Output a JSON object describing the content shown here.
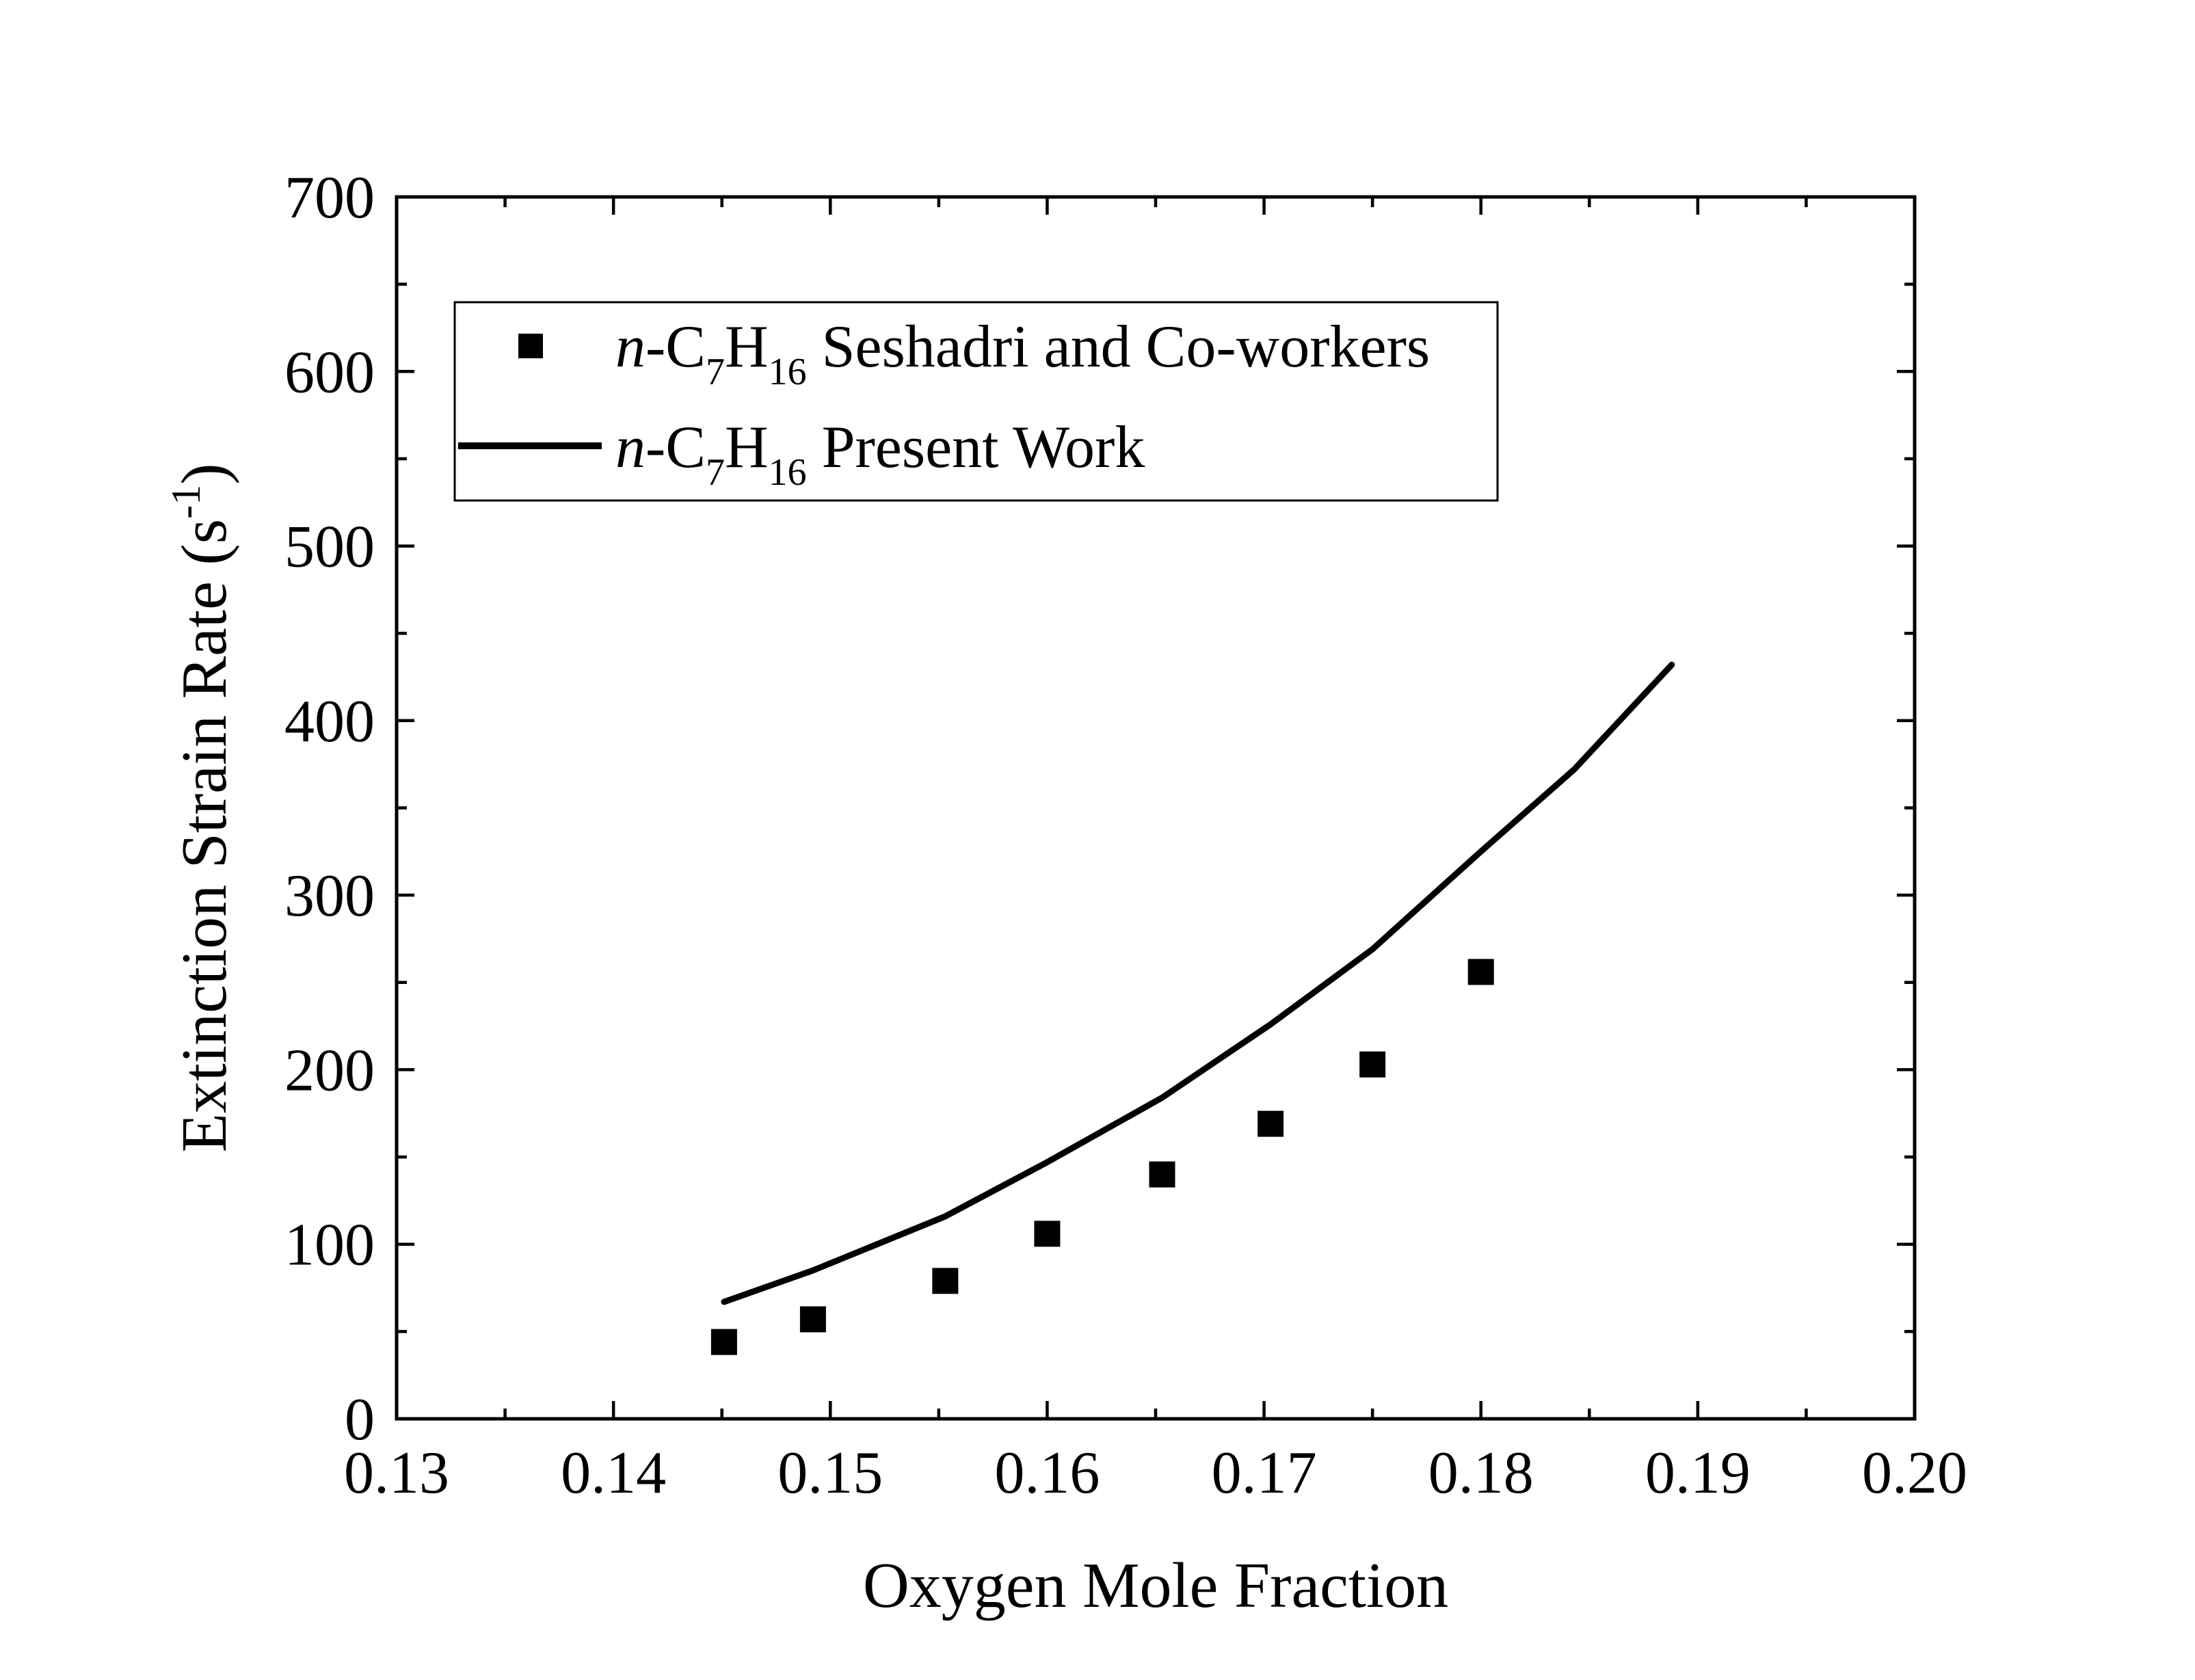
{
  "chart_data": {
    "type": "scatter",
    "xlabel": "Oxygen Mole Fraction",
    "ylabel": {
      "prefix": "Extinction Strain Rate (s",
      "superscript": "-1",
      "suffix": ")"
    },
    "xlim": [
      0.13,
      0.2
    ],
    "ylim": [
      0,
      700
    ],
    "x_ticks": [
      0.13,
      0.14,
      0.15,
      0.16,
      0.17,
      0.18,
      0.19,
      0.2
    ],
    "x_tick_labels": [
      "0.13",
      "0.14",
      "0.15",
      "0.16",
      "0.17",
      "0.18",
      "0.19",
      "0.20"
    ],
    "y_ticks": [
      0,
      100,
      200,
      300,
      400,
      500,
      600,
      700
    ],
    "y_tick_labels": [
      "0",
      "100",
      "200",
      "300",
      "400",
      "500",
      "600",
      "700"
    ],
    "grid": false,
    "legend_position": "top-left",
    "series": [
      {
        "name": "n-C7H16 Seshadri and Co-workers",
        "name_parts": {
          "italic": "n",
          "text1": "-C",
          "sub1": "7",
          "text2": "H",
          "sub2": "16",
          "text3": " Seshadri and Co-workers"
        },
        "kind": "scatter",
        "marker": "square",
        "color": "#000000",
        "points": [
          {
            "x": 0.1451,
            "y": 44
          },
          {
            "x": 0.1492,
            "y": 57
          },
          {
            "x": 0.1553,
            "y": 79
          },
          {
            "x": 0.16,
            "y": 106
          },
          {
            "x": 0.1653,
            "y": 140
          },
          {
            "x": 0.1703,
            "y": 169
          },
          {
            "x": 0.175,
            "y": 203
          },
          {
            "x": 0.18,
            "y": 256
          }
        ]
      },
      {
        "name": "n-C7H16 Present Work",
        "name_parts": {
          "italic": "n",
          "text1": "-C",
          "sub1": "7",
          "text2": "H",
          "sub2": "16",
          "text3": " Present Work"
        },
        "kind": "line",
        "color": "#000000",
        "points": [
          {
            "x": 0.1451,
            "y": 67
          },
          {
            "x": 0.1492,
            "y": 85
          },
          {
            "x": 0.1553,
            "y": 116
          },
          {
            "x": 0.16,
            "y": 147
          },
          {
            "x": 0.1653,
            "y": 184
          },
          {
            "x": 0.1703,
            "y": 226
          },
          {
            "x": 0.175,
            "y": 269
          },
          {
            "x": 0.18,
            "y": 325
          },
          {
            "x": 0.1843,
            "y": 372
          },
          {
            "x": 0.1888,
            "y": 432
          }
        ]
      }
    ]
  }
}
